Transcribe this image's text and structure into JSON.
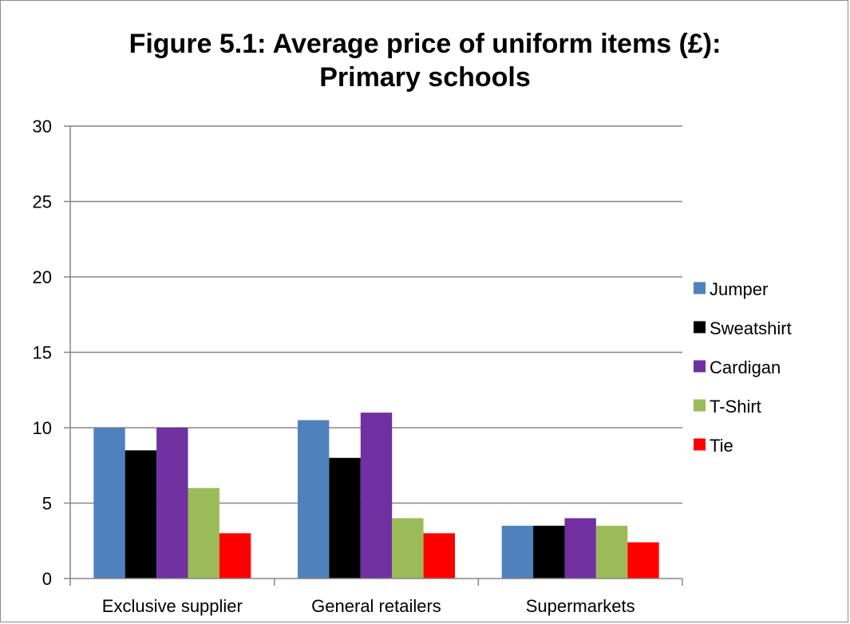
{
  "chart_data": {
    "type": "bar",
    "title": "Figure 5.1: Average price of uniform items (£): Primary schools",
    "title_lines": [
      "Figure 5.1: Average price of uniform items (£):",
      "Primary schools"
    ],
    "xlabel": "",
    "ylabel": "",
    "categories": [
      "Exclusive supplier",
      "General retailers",
      "Supermarkets"
    ],
    "series": [
      {
        "name": "Jumper",
        "color": "#4f81bd",
        "values": [
          10,
          10.5,
          3.5
        ]
      },
      {
        "name": "Sweatshirt",
        "color": "#000000",
        "values": [
          8.5,
          8,
          3.5
        ]
      },
      {
        "name": "Cardigan",
        "color": "#7030a0",
        "values": [
          10,
          11,
          4
        ]
      },
      {
        "name": "T-Shirt",
        "color": "#9bbb59",
        "values": [
          6,
          4,
          3.5
        ]
      },
      {
        "name": "Tie",
        "color": "#ff0000",
        "values": [
          3,
          3,
          2.4
        ]
      }
    ],
    "ylim": [
      0,
      30
    ],
    "yticks": [
      0,
      5,
      10,
      15,
      20,
      25,
      30
    ],
    "grid": true,
    "legend_position": "right"
  }
}
